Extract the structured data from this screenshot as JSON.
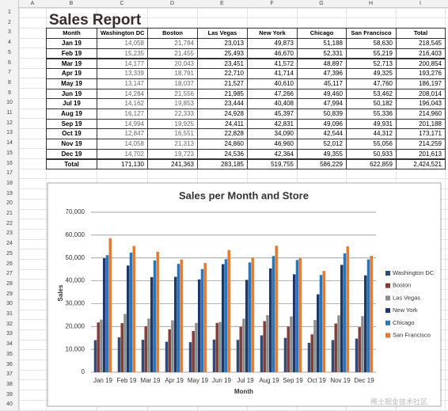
{
  "column_headers": [
    "A",
    "B",
    "C",
    "D",
    "E",
    "F",
    "G",
    "H",
    "I"
  ],
  "row_numbers": [
    1,
    2,
    3,
    4,
    5,
    6,
    7,
    8,
    9,
    10,
    11,
    12,
    13,
    14,
    15,
    16,
    17,
    18,
    19,
    20,
    21,
    22,
    23,
    24,
    25,
    26,
    27,
    28,
    29,
    30,
    31,
    32,
    33,
    34,
    35,
    36,
    37,
    38,
    39,
    40
  ],
  "title": "Sales Report",
  "table": {
    "header": [
      "Month",
      "Washington DC",
      "Boston",
      "Las Vegas",
      "New York",
      "Chicago",
      "San Francisco",
      "Total"
    ],
    "rows": [
      [
        "Jan 19",
        "14,058",
        "21,784",
        "23,013",
        "49,873",
        "51,188",
        "58,630",
        "218,545"
      ],
      [
        "Feb 19",
        "15,235",
        "21,455",
        "25,493",
        "46,670",
        "52,331",
        "55,219",
        "216,403"
      ],
      [
        "Mar 19",
        "14,177",
        "20,043",
        "23,451",
        "41,572",
        "48,897",
        "52,713",
        "200,854"
      ],
      [
        "Apr 19",
        "13,339",
        "18,791",
        "22,710",
        "41,714",
        "47,396",
        "49,325",
        "193,276"
      ],
      [
        "May 19",
        "13,147",
        "18,037",
        "21,527",
        "40,610",
        "45,117",
        "47,760",
        "186,197"
      ],
      [
        "Jun 19",
        "14,284",
        "21,556",
        "21,985",
        "47,266",
        "49,460",
        "53,462",
        "208,014"
      ],
      [
        "Jul 19",
        "14,162",
        "19,853",
        "23,444",
        "40,408",
        "47,994",
        "50,182",
        "196,043"
      ],
      [
        "Aug 19",
        "16,127",
        "22,333",
        "24,928",
        "45,397",
        "50,839",
        "55,336",
        "214,960"
      ],
      [
        "Sep 19",
        "14,994",
        "19,925",
        "24,411",
        "42,831",
        "49,096",
        "49,931",
        "201,188"
      ],
      [
        "Oct 19",
        "12,847",
        "16,551",
        "22,828",
        "34,090",
        "42,544",
        "44,312",
        "173,171"
      ],
      [
        "Nov 19",
        "14,058",
        "21,313",
        "24,860",
        "46,960",
        "52,012",
        "55,056",
        "214,259"
      ],
      [
        "Dec 19",
        "14,702",
        "19,723",
        "24,536",
        "42,364",
        "49,355",
        "50,933",
        "201,613"
      ]
    ],
    "total_row": [
      "Total",
      "171,130",
      "241,363",
      "283,185",
      "519,755",
      "586,229",
      "622,859",
      "2,424,521"
    ]
  },
  "chart_data": {
    "type": "bar",
    "title": "Sales per Month and Store",
    "x_label": "Month",
    "y_label": "Sales",
    "categories": [
      "Jan 19",
      "Feb 19",
      "Mar 19",
      "Apr 19",
      "May 19",
      "Jun 19",
      "Jul 19",
      "Aug 19",
      "Sep 19",
      "Oct 19",
      "Nov 19",
      "Dec 19"
    ],
    "series": [
      {
        "name": "Washington DC",
        "color": "#2f4b7c",
        "values": [
          14058,
          15235,
          14177,
          13339,
          13147,
          14284,
          14162,
          16127,
          14994,
          12847,
          14058,
          14702
        ]
      },
      {
        "name": "Boston",
        "color": "#843c39",
        "values": [
          21784,
          21455,
          20043,
          18791,
          18037,
          21556,
          19853,
          22333,
          19925,
          16551,
          21313,
          19723
        ]
      },
      {
        "name": "Las Vegas",
        "color": "#8c8c8c",
        "values": [
          23013,
          25493,
          23451,
          22710,
          21527,
          21985,
          23444,
          24928,
          24411,
          22828,
          24860,
          24536
        ]
      },
      {
        "name": "New York",
        "color": "#1f3864",
        "values": [
          49873,
          46670,
          41572,
          41714,
          40610,
          47266,
          40408,
          45397,
          42831,
          34090,
          46960,
          42364
        ]
      },
      {
        "name": "Chicago",
        "color": "#2e75b6",
        "values": [
          51188,
          52331,
          48897,
          47396,
          45117,
          49460,
          47994,
          50839,
          49096,
          42544,
          52012,
          49355
        ]
      },
      {
        "name": "San Francisco",
        "color": "#e07b39",
        "values": [
          58630,
          55219,
          52713,
          49325,
          47760,
          53462,
          50182,
          55336,
          49931,
          44312,
          55056,
          50933
        ]
      }
    ],
    "ylim": [
      0,
      70000
    ],
    "yticks": [
      0,
      {
        "value": 10000,
        "label": "10,000"
      },
      {
        "value": 20000,
        "label": "20,000"
      },
      {
        "value": 30000,
        "label": "30,000"
      },
      {
        "value": 40000,
        "label": "40,000"
      },
      {
        "value": 50000,
        "label": "50,000"
      },
      {
        "value": 60000,
        "label": "60,000"
      },
      {
        "value": 70000,
        "label": "70,000"
      }
    ],
    "grid": true,
    "legend": "right"
  },
  "watermark": "稀土掘金技术社区"
}
